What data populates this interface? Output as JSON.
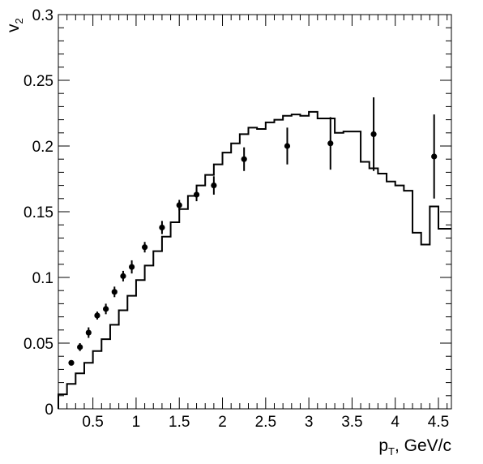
{
  "chart_data": {
    "type": "scatter",
    "xlabel": {
      "main": "p",
      "sub": "T",
      "rest": ", GeV/c"
    },
    "ylabel": {
      "main": "v",
      "sub": "2"
    },
    "xlim": [
      0.1,
      4.65
    ],
    "ylim": [
      0,
      0.3
    ],
    "x_ticks": [
      0.5,
      1,
      1.5,
      2,
      2.5,
      3,
      3.5,
      4,
      4.5
    ],
    "x_tick_labels": [
      "0.5",
      "1",
      "1.5",
      "2",
      "2.5",
      "3",
      "3.5",
      "4",
      "4.5"
    ],
    "y_ticks": [
      0,
      0.05,
      0.1,
      0.15,
      0.2,
      0.25,
      0.3
    ],
    "y_tick_labels": [
      "0",
      "0.05",
      "0.1",
      "0.15",
      "0.2",
      "0.25",
      "0.3"
    ],
    "grid": false,
    "colors": {
      "markers": "#000000",
      "line": "#000000",
      "frame": "#000000"
    },
    "series": [
      {
        "type": "scatter",
        "points": [
          {
            "x": 0.25,
            "y": 0.035,
            "err": 0.002
          },
          {
            "x": 0.35,
            "y": 0.047,
            "err": 0.003
          },
          {
            "x": 0.45,
            "y": 0.058,
            "err": 0.004
          },
          {
            "x": 0.55,
            "y": 0.071,
            "err": 0.003
          },
          {
            "x": 0.65,
            "y": 0.076,
            "err": 0.004
          },
          {
            "x": 0.75,
            "y": 0.089,
            "err": 0.004
          },
          {
            "x": 0.85,
            "y": 0.101,
            "err": 0.004
          },
          {
            "x": 0.95,
            "y": 0.108,
            "err": 0.005
          },
          {
            "x": 1.1,
            "y": 0.123,
            "err": 0.004
          },
          {
            "x": 1.3,
            "y": 0.138,
            "err": 0.005
          },
          {
            "x": 1.5,
            "y": 0.155,
            "err": 0.004
          },
          {
            "x": 1.7,
            "y": 0.163,
            "err": 0.005
          },
          {
            "x": 1.9,
            "y": 0.17,
            "err": 0.007
          },
          {
            "x": 2.25,
            "y": 0.19,
            "err": 0.009
          },
          {
            "x": 2.75,
            "y": 0.2,
            "err": 0.014
          },
          {
            "x": 3.25,
            "y": 0.202,
            "err": 0.02
          },
          {
            "x": 3.75,
            "y": 0.209,
            "err": 0.028
          },
          {
            "x": 4.45,
            "y": 0.192,
            "err": 0.032
          }
        ]
      },
      {
        "type": "step",
        "edges": [
          0.1,
          0.2,
          0.3,
          0.4,
          0.5,
          0.6,
          0.7,
          0.8,
          0.9,
          1.0,
          1.1,
          1.2,
          1.3,
          1.4,
          1.5,
          1.6,
          1.7,
          1.8,
          1.9,
          2.0,
          2.1,
          2.2,
          2.3,
          2.4,
          2.5,
          2.6,
          2.7,
          2.8,
          2.9,
          3.0,
          3.1,
          3.2,
          3.3,
          3.4,
          3.5,
          3.6,
          3.7,
          3.8,
          3.9,
          4.0,
          4.1,
          4.2,
          4.3,
          4.4,
          4.5,
          4.65
        ],
        "values": [
          0.011,
          0.019,
          0.027,
          0.035,
          0.044,
          0.053,
          0.064,
          0.075,
          0.086,
          0.098,
          0.109,
          0.12,
          0.131,
          0.142,
          0.152,
          0.162,
          0.17,
          0.178,
          0.186,
          0.195,
          0.202,
          0.209,
          0.214,
          0.213,
          0.218,
          0.22,
          0.223,
          0.224,
          0.223,
          0.226,
          0.221,
          0.221,
          0.21,
          0.211,
          0.211,
          0.188,
          0.183,
          0.179,
          0.173,
          0.17,
          0.166,
          0.134,
          0.125,
          0.154,
          0.137
        ]
      }
    ]
  }
}
